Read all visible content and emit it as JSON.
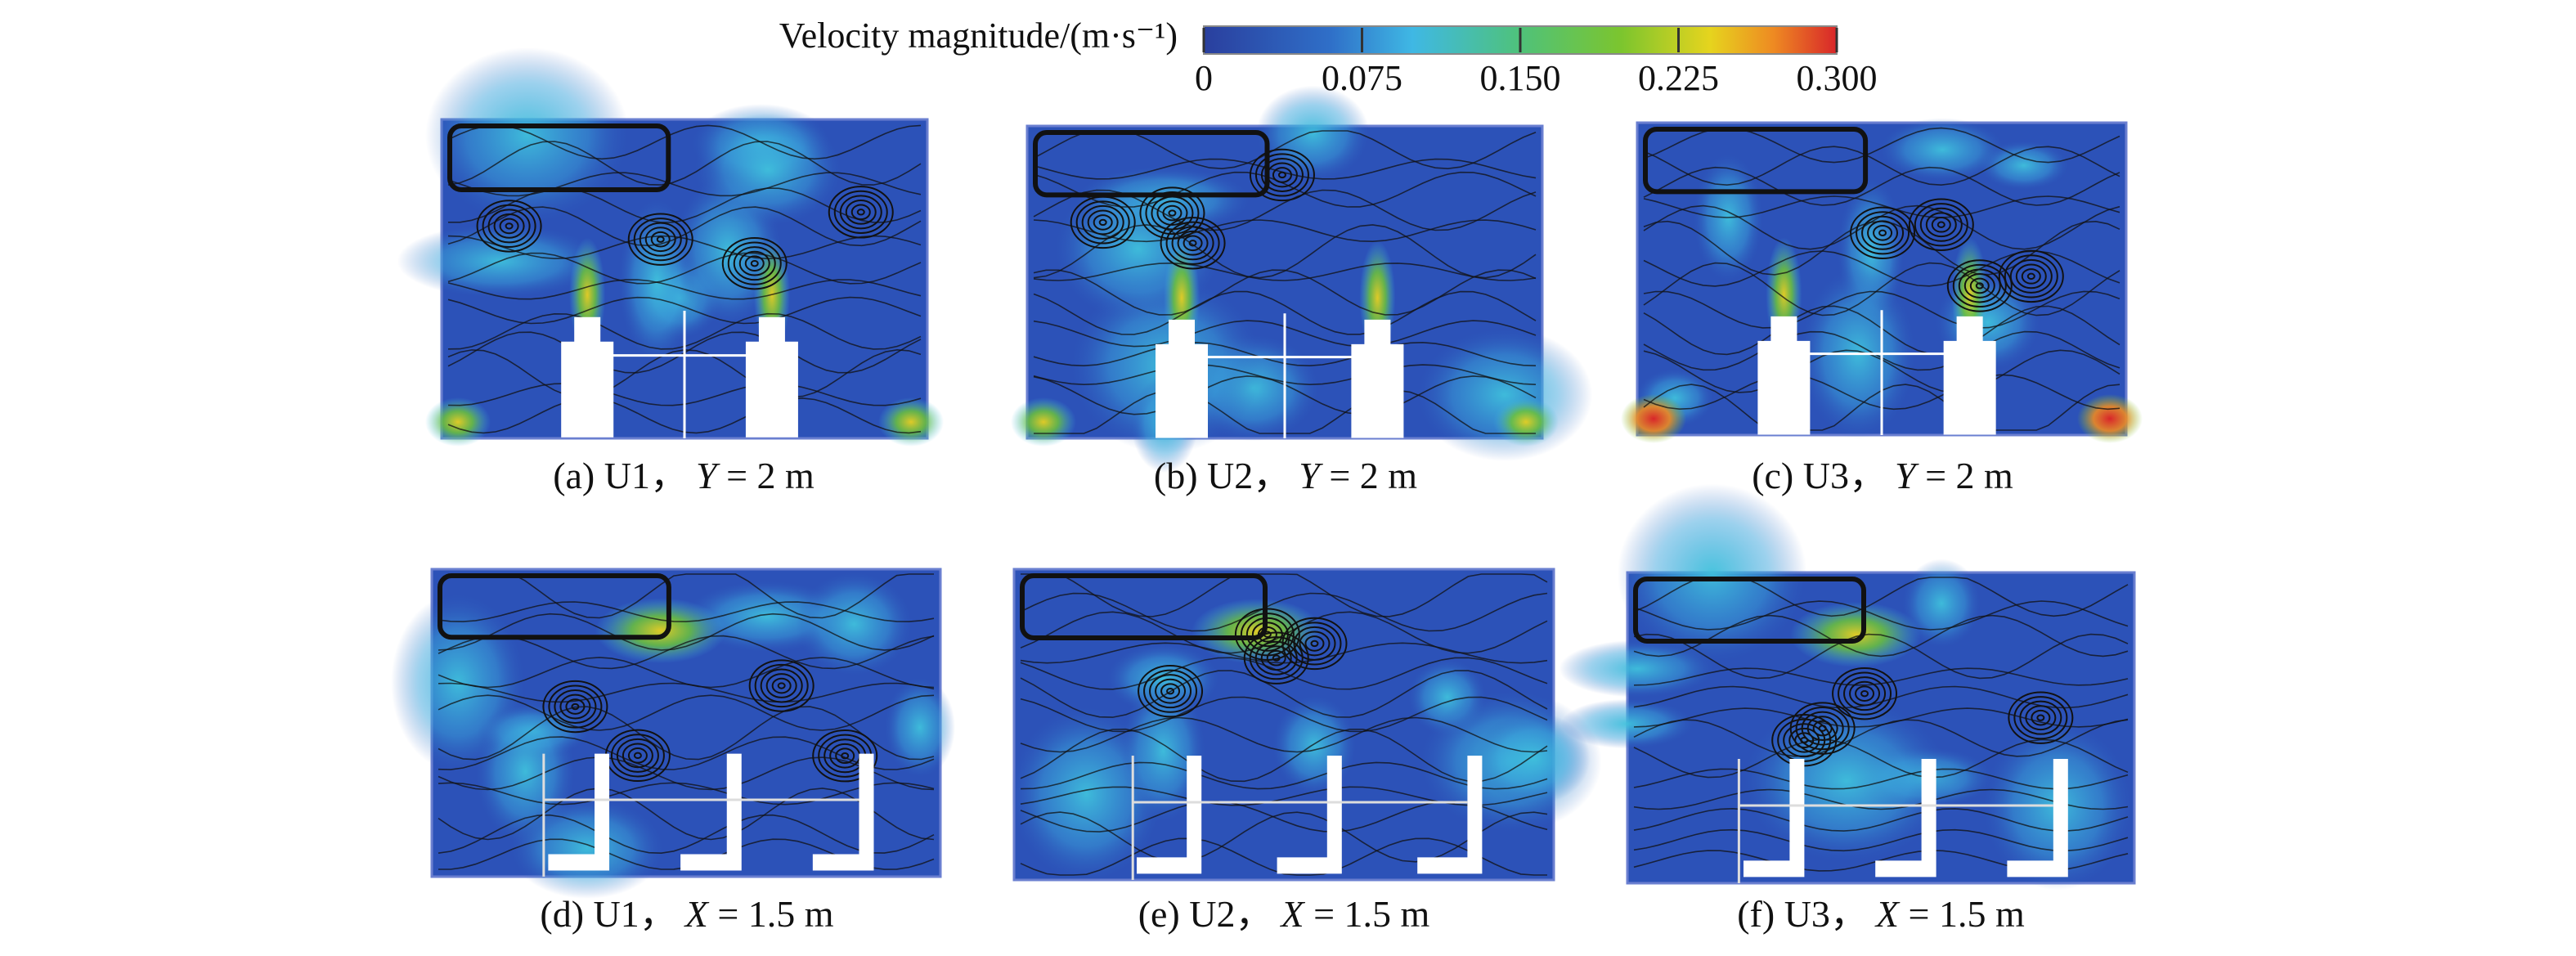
{
  "colorbar": {
    "title": "Velocity magnitude/(m·s⁻¹)",
    "ticks": [
      0,
      0.075,
      {
        "value": 0.15,
        "label": "0.150"
      },
      0.225,
      {
        "value": 0.3,
        "label": "0.300"
      }
    ]
  },
  "panels": [
    {
      "label": "(a) U1，",
      "variable": "Y",
      "rest": " = 2 m"
    },
    {
      "label": "(b) U2，",
      "variable": "Y",
      "rest": " = 2 m"
    },
    {
      "label": "(c) U3，",
      "variable": "Y",
      "rest": " = 2 m"
    },
    {
      "label": "(d) U1，",
      "variable": "X",
      "rest": " = 1.5 m"
    },
    {
      "label": "(e) U2，",
      "variable": "X",
      "rest": " = 1.5 m"
    },
    {
      "label": "(f) U3，",
      "variable": "X",
      "rest": " = 1.5 m"
    }
  ]
}
